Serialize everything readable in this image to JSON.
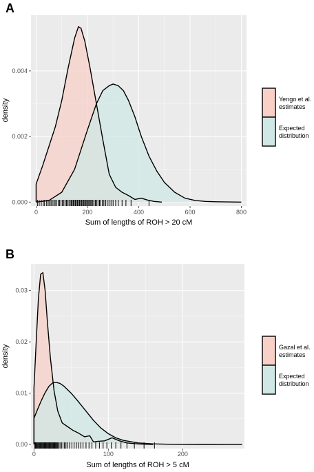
{
  "colors": {
    "panel_bg": "#ebebeb",
    "series_a": "#f8d0c8",
    "series_b": "#cfe8e6",
    "overlap": "#d2d0c9",
    "line": "#000000"
  },
  "chart_data": [
    {
      "panel": "A",
      "type": "area",
      "subtype": "density",
      "xlabel": "Sum of lengths of ROH > 20 cM",
      "ylabel": "density",
      "xlim": [
        -20,
        820
      ],
      "ylim": [
        -0.00012,
        0.0057
      ],
      "x_ticks": [
        0,
        200,
        400,
        600,
        800
      ],
      "y_ticks": [
        0.0,
        0.002,
        0.004
      ],
      "y_tick_labels": [
        "0.000",
        "0.002",
        "0.004"
      ],
      "grid": true,
      "legend_position": "right",
      "series": [
        {
          "name": "Yengo et al. estimates",
          "color": "#f8d0c8",
          "x": [
            0,
            25,
            50,
            75,
            100,
            125,
            150,
            165,
            175,
            190,
            210,
            235,
            260,
            285,
            310,
            335,
            360,
            385,
            410,
            435,
            460,
            490
          ],
          "y": [
            0.00055,
            0.0011,
            0.0017,
            0.0023,
            0.0031,
            0.0041,
            0.005,
            0.00535,
            0.0053,
            0.0049,
            0.0041,
            0.003,
            0.0019,
            0.00085,
            0.00045,
            0.0003,
            0.0002,
            8e-05,
            0.00012,
            6e-05,
            2e-05,
            0.0
          ]
        },
        {
          "name": "Expected\ndistribution",
          "color": "#cfe8e6",
          "x": [
            0,
            50,
            100,
            150,
            200,
            235,
            260,
            285,
            300,
            320,
            340,
            360,
            385,
            410,
            440,
            470,
            500,
            540,
            580,
            620,
            660,
            700,
            750,
            800
          ],
          "y": [
            0.0,
            5e-05,
            0.0003,
            0.001,
            0.0022,
            0.003,
            0.0034,
            0.00355,
            0.0036,
            0.00355,
            0.0034,
            0.0031,
            0.0026,
            0.002,
            0.0014,
            0.00095,
            0.0006,
            0.0003,
            0.00012,
            5e-05,
            2e-05,
            1e-05,
            5e-06,
            0.0
          ]
        }
      ],
      "rug": [
        5,
        12,
        20,
        28,
        33,
        41,
        47,
        52,
        58,
        63,
        69,
        74,
        80,
        86,
        91,
        97,
        102,
        108,
        113,
        118,
        123,
        128,
        133,
        137,
        141,
        145,
        149,
        153,
        157,
        161,
        165,
        169,
        173,
        177,
        181,
        185,
        189,
        193,
        197,
        201,
        205,
        209,
        213,
        217,
        221,
        226,
        231,
        236,
        241,
        247,
        252,
        258,
        264,
        271,
        277,
        284,
        292,
        300,
        310,
        320,
        335,
        350,
        370,
        440
      ]
    },
    {
      "panel": "B",
      "type": "area",
      "subtype": "density",
      "xlabel": "Sum of lengths of ROH > 5 cM",
      "ylabel": "density",
      "xlim": [
        -4,
        283
      ],
      "ylim": [
        -0.0008,
        0.0352
      ],
      "x_ticks": [
        0,
        100,
        200
      ],
      "y_ticks": [
        0.0,
        0.01,
        0.02,
        0.03
      ],
      "y_tick_labels": [
        "0.00",
        "0.01",
        "0.02",
        "0.03"
      ],
      "grid": true,
      "legend_position": "right",
      "series": [
        {
          "name": "Gazal et al. estimates",
          "color": "#f8d0c8",
          "x": [
            0,
            3,
            6,
            9,
            12,
            15,
            18,
            22,
            27,
            32,
            38,
            45,
            52,
            60,
            68,
            75,
            80,
            85,
            95,
            105,
            115,
            125,
            140,
            160
          ],
          "y": [
            0.011,
            0.02,
            0.0285,
            0.0332,
            0.0335,
            0.03,
            0.024,
            0.017,
            0.0105,
            0.0065,
            0.0042,
            0.0035,
            0.0028,
            0.0022,
            0.0015,
            0.0017,
            0.0005,
            0.0006,
            0.0007,
            0.0013,
            0.0007,
            0.0003,
            0.0001,
            0.0
          ]
        },
        {
          "name": "Expected\ndistribution",
          "color": "#cfe8e6",
          "x": [
            0,
            5,
            10,
            15,
            20,
            25,
            30,
            35,
            40,
            50,
            60,
            70,
            80,
            90,
            100,
            110,
            120,
            140,
            160,
            180,
            200,
            230,
            260,
            280
          ],
          "y": [
            0.0051,
            0.0069,
            0.0086,
            0.0101,
            0.0113,
            0.012,
            0.0121,
            0.0119,
            0.0114,
            0.01,
            0.0083,
            0.0065,
            0.0047,
            0.0032,
            0.0021,
            0.0013,
            0.0008,
            0.0003,
            0.00012,
            5e-05,
            2e-05,
            5e-06,
            0.0,
            0.0
          ]
        }
      ],
      "rug": [
        1,
        2,
        3,
        4,
        5,
        6,
        7,
        8,
        9,
        10,
        11,
        12,
        13,
        14,
        15,
        16,
        17,
        18,
        19,
        20,
        21,
        22,
        23,
        24,
        25,
        26,
        27,
        28,
        29,
        30,
        31,
        32,
        33,
        35,
        37,
        39,
        41,
        43,
        45,
        48,
        51,
        54,
        57,
        60,
        63,
        66,
        70,
        74,
        78,
        83,
        88,
        93,
        98,
        104,
        110,
        117,
        125,
        135,
        148,
        162
      ]
    }
  ]
}
